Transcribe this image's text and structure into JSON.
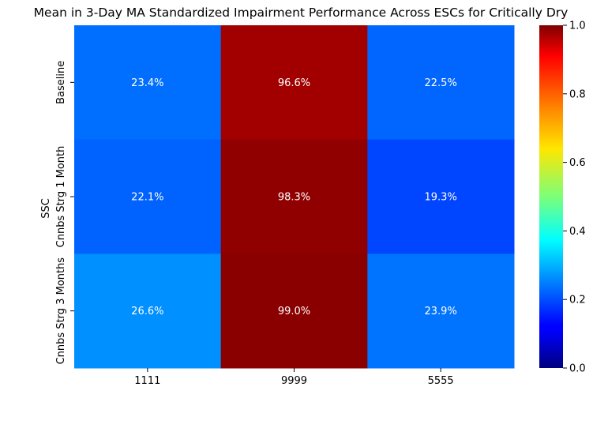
{
  "chart_data": {
    "type": "heatmap",
    "title": "Mean in 3-Day MA Standardized Impairment Performance Across ESCs for Critically Dry",
    "xlabel": "",
    "ylabel": "SSC",
    "x_categories": [
      "1111",
      "9999",
      "5555"
    ],
    "y_categories": [
      "Baseline",
      "Cnnbs Strg 1 Month",
      "Cnnbs Strg 3 Months"
    ],
    "values": [
      [
        0.234,
        0.966,
        0.225
      ],
      [
        0.221,
        0.983,
        0.193
      ],
      [
        0.266,
        0.99,
        0.239
      ]
    ],
    "cell_labels": [
      [
        "23.4%",
        "96.6%",
        "22.5%"
      ],
      [
        "22.1%",
        "98.3%",
        "19.3%"
      ],
      [
        "26.6%",
        "99.0%",
        "23.9%"
      ]
    ],
    "colormap": "jet",
    "vmin": 0.0,
    "vmax": 1.0,
    "colorbar_ticks": [
      "0.0",
      "0.2",
      "0.4",
      "0.6",
      "0.8",
      "1.0"
    ],
    "colorbar_tick_values": [
      0.0,
      0.2,
      0.4,
      0.6,
      0.8,
      1.0
    ],
    "annotation_color": "#ffffff"
  }
}
